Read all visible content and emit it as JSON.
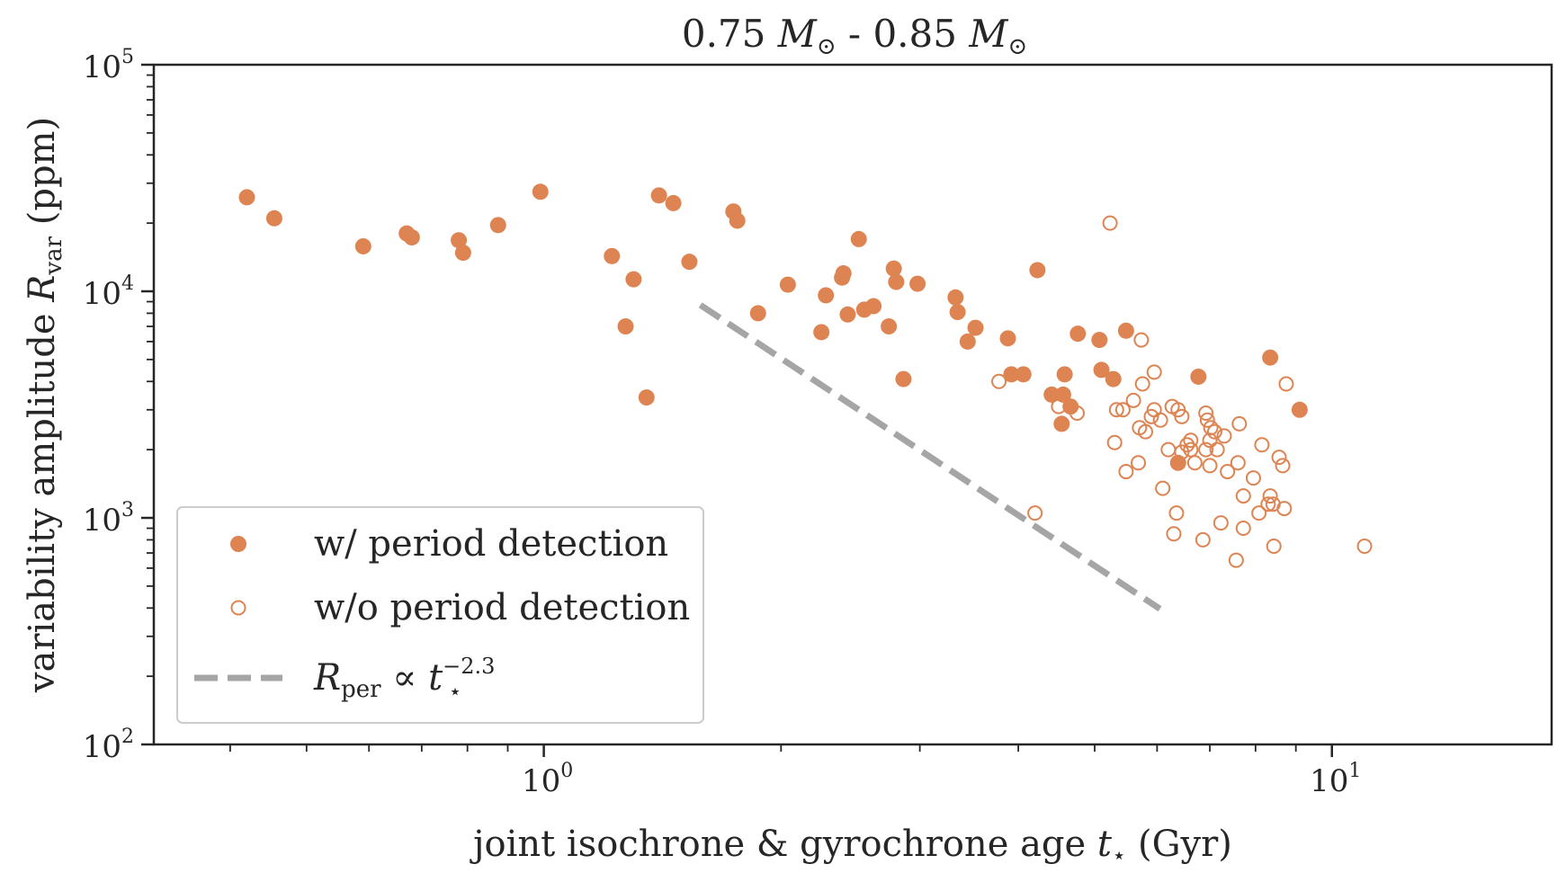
{
  "chart_data": {
    "type": "scatter",
    "title": "0.75 M⊙ - 0.85 M⊙",
    "xlabel": "joint isochrone & gyrochrone age t⋆ (Gyr)",
    "ylabel": "variability amplitude R_var (ppm)",
    "xscale": "log",
    "yscale": "log",
    "xlim": [
      0.32,
      19.0
    ],
    "ylim": [
      100,
      100000
    ],
    "x_ticks": [
      {
        "value": 1,
        "label": "10",
        "exp": "0"
      },
      {
        "value": 10,
        "label": "10",
        "exp": "1"
      }
    ],
    "y_ticks": [
      {
        "value": 100,
        "label": "10",
        "exp": "2"
      },
      {
        "value": 1000,
        "label": "10",
        "exp": "3"
      },
      {
        "value": 10000,
        "label": "10",
        "exp": "4"
      },
      {
        "value": 100000,
        "label": "10",
        "exp": "5"
      }
    ],
    "legend_position": "bottom-left",
    "colors": {
      "series": "#dd8452",
      "trend": "#a5a5a5",
      "axis": "#262626"
    },
    "series": [
      {
        "name": "w/ period detection",
        "marker": "filled-circle",
        "points": [
          [
            0.42,
            26000
          ],
          [
            0.455,
            21000
          ],
          [
            0.59,
            15800
          ],
          [
            0.67,
            18000
          ],
          [
            0.68,
            17300
          ],
          [
            0.78,
            16800
          ],
          [
            0.79,
            14800
          ],
          [
            0.875,
            19600
          ],
          [
            0.99,
            27500
          ],
          [
            1.22,
            14300
          ],
          [
            1.27,
            7000
          ],
          [
            1.3,
            11300
          ],
          [
            1.35,
            3400
          ],
          [
            1.4,
            26500
          ],
          [
            1.46,
            24500
          ],
          [
            1.53,
            13500
          ],
          [
            1.74,
            22500
          ],
          [
            1.76,
            20500
          ],
          [
            1.87,
            8000
          ],
          [
            2.04,
            10700
          ],
          [
            2.25,
            6600
          ],
          [
            2.28,
            9600
          ],
          [
            2.39,
            11500
          ],
          [
            2.4,
            12000
          ],
          [
            2.43,
            7900
          ],
          [
            2.51,
            17000
          ],
          [
            2.55,
            8300
          ],
          [
            2.62,
            8600
          ],
          [
            2.74,
            7000
          ],
          [
            2.78,
            12600
          ],
          [
            2.8,
            11000
          ],
          [
            2.86,
            4100
          ],
          [
            2.98,
            10800
          ],
          [
            3.33,
            9400
          ],
          [
            3.35,
            8100
          ],
          [
            3.45,
            6000
          ],
          [
            3.53,
            6900
          ],
          [
            3.88,
            6200
          ],
          [
            3.92,
            4300
          ],
          [
            4.06,
            4300
          ],
          [
            4.23,
            12400
          ],
          [
            4.41,
            3500
          ],
          [
            4.54,
            2600
          ],
          [
            4.56,
            3500
          ],
          [
            4.58,
            4300
          ],
          [
            4.66,
            3100
          ],
          [
            4.76,
            6500
          ],
          [
            5.07,
            6100
          ],
          [
            5.1,
            4500
          ],
          [
            5.28,
            4100
          ],
          [
            5.48,
            6700
          ],
          [
            6.38,
            1750
          ],
          [
            6.77,
            4200
          ],
          [
            8.35,
            5100
          ],
          [
            9.1,
            3000
          ]
        ]
      },
      {
        "name": "w/o period detection",
        "marker": "open-circle",
        "points": [
          [
            3.78,
            4000
          ],
          [
            4.2,
            1050
          ],
          [
            4.5,
            3100
          ],
          [
            4.75,
            2900
          ],
          [
            5.23,
            20000
          ],
          [
            5.3,
            2150
          ],
          [
            5.33,
            3000
          ],
          [
            5.43,
            3000
          ],
          [
            5.48,
            1600
          ],
          [
            5.6,
            3300
          ],
          [
            5.68,
            1750
          ],
          [
            5.7,
            2500
          ],
          [
            5.73,
            6100
          ],
          [
            5.75,
            3900
          ],
          [
            5.8,
            2400
          ],
          [
            5.9,
            2800
          ],
          [
            5.95,
            4400
          ],
          [
            5.95,
            3000
          ],
          [
            6.06,
            2700
          ],
          [
            6.1,
            1350
          ],
          [
            6.2,
            2000
          ],
          [
            6.27,
            3100
          ],
          [
            6.3,
            850
          ],
          [
            6.35,
            1050
          ],
          [
            6.38,
            3000
          ],
          [
            6.45,
            1950
          ],
          [
            6.45,
            2800
          ],
          [
            6.55,
            2100
          ],
          [
            6.62,
            2200
          ],
          [
            6.62,
            2000
          ],
          [
            6.7,
            1750
          ],
          [
            6.86,
            800
          ],
          [
            6.92,
            2000
          ],
          [
            6.92,
            2900
          ],
          [
            6.95,
            2700
          ],
          [
            7.0,
            1700
          ],
          [
            7.0,
            2200
          ],
          [
            7.02,
            2500
          ],
          [
            7.1,
            2400
          ],
          [
            7.15,
            2000
          ],
          [
            7.23,
            950
          ],
          [
            7.3,
            2300
          ],
          [
            7.37,
            1600
          ],
          [
            7.56,
            650
          ],
          [
            7.6,
            1750
          ],
          [
            7.63,
            2600
          ],
          [
            7.72,
            1250
          ],
          [
            7.72,
            900
          ],
          [
            7.95,
            1500
          ],
          [
            8.08,
            1050
          ],
          [
            8.15,
            2100
          ],
          [
            8.3,
            1150
          ],
          [
            8.35,
            1250
          ],
          [
            8.42,
            1150
          ],
          [
            8.44,
            750
          ],
          [
            8.57,
            1850
          ],
          [
            8.66,
            1700
          ],
          [
            8.7,
            1100
          ],
          [
            8.75,
            3900
          ],
          [
            11.0,
            750
          ]
        ]
      }
    ],
    "trend_line": {
      "name": "R_per ∝ t⋆^-2.3",
      "style": "dashed",
      "exponent": -2.3,
      "x_range": [
        1.58,
        6.05
      ],
      "y_at_start": 8700
    },
    "legend": {
      "entries": [
        {
          "label": "w/ period detection",
          "marker": "filled-circle"
        },
        {
          "label": "w/o period detection",
          "marker": "open-circle"
        },
        {
          "label": "R",
          "sub": "per",
          "symbol": "∝",
          "var": "t",
          "var_sub": "⋆",
          "var_sup": "−2.3",
          "marker": "dashed-line"
        }
      ]
    }
  }
}
